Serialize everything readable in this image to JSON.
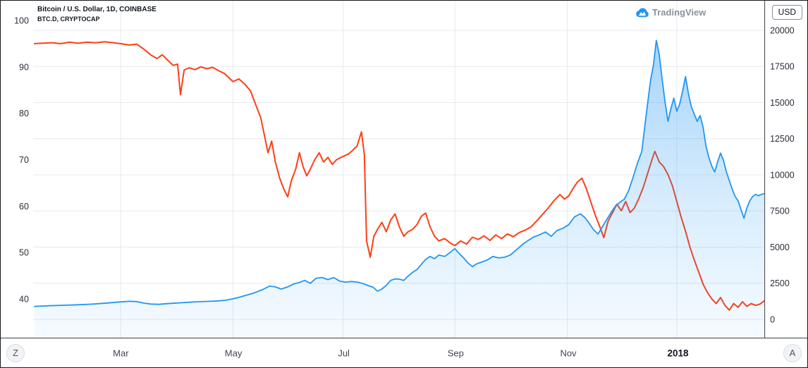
{
  "legend": {
    "symbol_title": "Bitcoin / U.S. Dollar, 1D, COINBASE",
    "overlay_title": "BTC.D, CRYPTOCAP"
  },
  "watermark": {
    "text": "TradingView"
  },
  "axes": {
    "currency_label": "USD"
  },
  "buttons": {
    "timezone_label": "Z",
    "auto_label": "A"
  },
  "colors": {
    "price_line": "#2196f3",
    "price_fill_top": "rgba(33,150,243,0.42)",
    "price_fill_mid": "rgba(33,150,243,0.18)",
    "price_fill_bottom": "rgba(33,150,243,0.04)",
    "dominance_line": "#ff3e14",
    "grid": "#e6e9f0",
    "axis_text": "#2a2e39",
    "separator": "#3d4046",
    "logo_blue": "#2196f3"
  },
  "chart_data": {
    "type": "line",
    "title": "Bitcoin / U.S. Dollar, 1D, COINBASE",
    "overlay": "BTC.D, CRYPTOCAP",
    "legend_position": "top-left",
    "grid": true,
    "x_axis": {
      "ticks": [
        {
          "label": "Mar",
          "t": 0.118,
          "strong": false
        },
        {
          "label": "May",
          "t": 0.272,
          "strong": false
        },
        {
          "label": "Jul",
          "t": 0.423,
          "strong": false
        },
        {
          "label": "Sep",
          "t": 0.576,
          "strong": false
        },
        {
          "label": "Nov",
          "t": 0.73,
          "strong": false
        },
        {
          "label": "2018",
          "t": 0.88,
          "strong": true
        }
      ]
    },
    "left_axis": {
      "title": "BTC.D (%)",
      "min": 31.65,
      "max": 104.25,
      "ticks": [
        100,
        90,
        80,
        70,
        60,
        50,
        40
      ]
    },
    "right_axis": {
      "title": "USD",
      "min": -1268,
      "max": 22048,
      "ticks": [
        20000,
        17500,
        15000,
        12500,
        10000,
        7500,
        5000,
        2500,
        0
      ]
    },
    "series": [
      {
        "name": "BTC.D, CRYPTOCAP",
        "name_slug": "dominance-line-series",
        "axis": "left",
        "style": "line",
        "color": "#ff3e14",
        "width": 2,
        "points": [
          [
            0.0,
            95.0
          ],
          [
            0.012,
            95.1
          ],
          [
            0.024,
            95.2
          ],
          [
            0.036,
            95.0
          ],
          [
            0.048,
            95.3
          ],
          [
            0.06,
            95.1
          ],
          [
            0.072,
            95.3
          ],
          [
            0.084,
            95.2
          ],
          [
            0.096,
            95.4
          ],
          [
            0.108,
            95.2
          ],
          [
            0.118,
            95.0
          ],
          [
            0.13,
            94.7
          ],
          [
            0.14,
            94.9
          ],
          [
            0.15,
            93.8
          ],
          [
            0.16,
            92.5
          ],
          [
            0.168,
            91.8
          ],
          [
            0.175,
            92.6
          ],
          [
            0.182,
            91.5
          ],
          [
            0.19,
            90.3
          ],
          [
            0.196,
            90.6
          ],
          [
            0.2,
            84.0
          ],
          [
            0.205,
            89.3
          ],
          [
            0.212,
            89.8
          ],
          [
            0.22,
            89.4
          ],
          [
            0.228,
            90.0
          ],
          [
            0.236,
            89.6
          ],
          [
            0.244,
            89.9
          ],
          [
            0.252,
            89.2
          ],
          [
            0.26,
            88.6
          ],
          [
            0.272,
            86.8
          ],
          [
            0.28,
            87.4
          ],
          [
            0.288,
            86.3
          ],
          [
            0.296,
            84.8
          ],
          [
            0.304,
            81.5
          ],
          [
            0.31,
            79.0
          ],
          [
            0.316,
            74.5
          ],
          [
            0.32,
            71.5
          ],
          [
            0.325,
            74.0
          ],
          [
            0.33,
            69.5
          ],
          [
            0.336,
            66.0
          ],
          [
            0.342,
            63.5
          ],
          [
            0.347,
            62.0
          ],
          [
            0.352,
            65.5
          ],
          [
            0.358,
            68.0
          ],
          [
            0.363,
            71.5
          ],
          [
            0.368,
            68.5
          ],
          [
            0.373,
            66.5
          ],
          [
            0.378,
            68.0
          ],
          [
            0.384,
            70.0
          ],
          [
            0.39,
            71.5
          ],
          [
            0.396,
            69.5
          ],
          [
            0.402,
            70.5
          ],
          [
            0.408,
            69.0
          ],
          [
            0.414,
            70.0
          ],
          [
            0.42,
            70.5
          ],
          [
            0.43,
            71.2
          ],
          [
            0.436,
            72.0
          ],
          [
            0.442,
            73.0
          ],
          [
            0.448,
            76.0
          ],
          [
            0.452,
            71.0
          ],
          [
            0.455,
            52.5
          ],
          [
            0.46,
            49.0
          ],
          [
            0.465,
            53.5
          ],
          [
            0.47,
            55.0
          ],
          [
            0.476,
            56.5
          ],
          [
            0.482,
            54.5
          ],
          [
            0.488,
            57.0
          ],
          [
            0.494,
            58.3
          ],
          [
            0.5,
            55.5
          ],
          [
            0.506,
            53.5
          ],
          [
            0.512,
            54.5
          ],
          [
            0.518,
            55.0
          ],
          [
            0.524,
            56.0
          ],
          [
            0.53,
            57.8
          ],
          [
            0.536,
            58.5
          ],
          [
            0.542,
            55.5
          ],
          [
            0.548,
            53.5
          ],
          [
            0.554,
            52.5
          ],
          [
            0.562,
            53.0
          ],
          [
            0.57,
            52.0
          ],
          [
            0.576,
            51.5
          ],
          [
            0.584,
            52.5
          ],
          [
            0.592,
            51.8
          ],
          [
            0.6,
            53.3
          ],
          [
            0.608,
            52.8
          ],
          [
            0.616,
            53.6
          ],
          [
            0.624,
            52.6
          ],
          [
            0.632,
            53.8
          ],
          [
            0.64,
            53.0
          ],
          [
            0.648,
            54.0
          ],
          [
            0.656,
            53.4
          ],
          [
            0.664,
            54.3
          ],
          [
            0.672,
            54.8
          ],
          [
            0.68,
            55.5
          ],
          [
            0.688,
            56.8
          ],
          [
            0.696,
            58.2
          ],
          [
            0.704,
            59.6
          ],
          [
            0.712,
            61.2
          ],
          [
            0.72,
            62.5
          ],
          [
            0.726,
            61.5
          ],
          [
            0.732,
            62.2
          ],
          [
            0.738,
            63.8
          ],
          [
            0.744,
            65.2
          ],
          [
            0.75,
            66.0
          ],
          [
            0.756,
            63.8
          ],
          [
            0.762,
            61.0
          ],
          [
            0.768,
            58.2
          ],
          [
            0.774,
            55.8
          ],
          [
            0.78,
            53.2
          ],
          [
            0.786,
            56.8
          ],
          [
            0.792,
            58.6
          ],
          [
            0.798,
            60.4
          ],
          [
            0.804,
            59.0
          ],
          [
            0.81,
            61.0
          ],
          [
            0.816,
            58.6
          ],
          [
            0.822,
            59.6
          ],
          [
            0.828,
            61.6
          ],
          [
            0.834,
            64.0
          ],
          [
            0.84,
            67.0
          ],
          [
            0.846,
            70.0
          ],
          [
            0.85,
            71.8
          ],
          [
            0.856,
            69.5
          ],
          [
            0.862,
            68.5
          ],
          [
            0.868,
            66.8
          ],
          [
            0.874,
            64.4
          ],
          [
            0.88,
            61.0
          ],
          [
            0.886,
            57.6
          ],
          [
            0.892,
            54.6
          ],
          [
            0.898,
            51.2
          ],
          [
            0.904,
            48.4
          ],
          [
            0.91,
            45.8
          ],
          [
            0.916,
            43.2
          ],
          [
            0.922,
            41.4
          ],
          [
            0.928,
            40.0
          ],
          [
            0.934,
            39.0
          ],
          [
            0.94,
            40.3
          ],
          [
            0.946,
            38.6
          ],
          [
            0.952,
            37.6
          ],
          [
            0.958,
            39.0
          ],
          [
            0.964,
            38.2
          ],
          [
            0.97,
            39.4
          ],
          [
            0.976,
            38.4
          ],
          [
            0.982,
            39.0
          ],
          [
            0.988,
            38.6
          ],
          [
            0.994,
            38.9
          ],
          [
            1.0,
            39.6
          ]
        ]
      },
      {
        "name": "Bitcoin / U.S. Dollar",
        "name_slug": "price-line-series",
        "axis": "right",
        "style": "area",
        "color": "#2196f3",
        "width": 1.8,
        "points": [
          [
            0.0,
            900
          ],
          [
            0.02,
            940
          ],
          [
            0.04,
            975
          ],
          [
            0.06,
            1010
          ],
          [
            0.08,
            1060
          ],
          [
            0.1,
            1130
          ],
          [
            0.118,
            1210
          ],
          [
            0.13,
            1250
          ],
          [
            0.14,
            1230
          ],
          [
            0.15,
            1120
          ],
          [
            0.16,
            1060
          ],
          [
            0.17,
            1040
          ],
          [
            0.182,
            1090
          ],
          [
            0.195,
            1130
          ],
          [
            0.21,
            1180
          ],
          [
            0.225,
            1220
          ],
          [
            0.24,
            1250
          ],
          [
            0.252,
            1280
          ],
          [
            0.262,
            1320
          ],
          [
            0.272,
            1420
          ],
          [
            0.282,
            1550
          ],
          [
            0.292,
            1700
          ],
          [
            0.302,
            1850
          ],
          [
            0.312,
            2050
          ],
          [
            0.322,
            2300
          ],
          [
            0.33,
            2250
          ],
          [
            0.338,
            2100
          ],
          [
            0.347,
            2250
          ],
          [
            0.355,
            2450
          ],
          [
            0.363,
            2550
          ],
          [
            0.37,
            2700
          ],
          [
            0.378,
            2500
          ],
          [
            0.386,
            2850
          ],
          [
            0.394,
            2900
          ],
          [
            0.402,
            2750
          ],
          [
            0.41,
            2900
          ],
          [
            0.418,
            2650
          ],
          [
            0.426,
            2580
          ],
          [
            0.434,
            2620
          ],
          [
            0.442,
            2580
          ],
          [
            0.45,
            2480
          ],
          [
            0.458,
            2320
          ],
          [
            0.464,
            2220
          ],
          [
            0.47,
            1950
          ],
          [
            0.476,
            2100
          ],
          [
            0.482,
            2350
          ],
          [
            0.488,
            2700
          ],
          [
            0.494,
            2800
          ],
          [
            0.5,
            2780
          ],
          [
            0.506,
            2700
          ],
          [
            0.512,
            3000
          ],
          [
            0.518,
            3250
          ],
          [
            0.524,
            3450
          ],
          [
            0.53,
            3800
          ],
          [
            0.536,
            4150
          ],
          [
            0.542,
            4350
          ],
          [
            0.548,
            4200
          ],
          [
            0.554,
            4450
          ],
          [
            0.562,
            4350
          ],
          [
            0.57,
            4650
          ],
          [
            0.576,
            4900
          ],
          [
            0.582,
            4550
          ],
          [
            0.588,
            4250
          ],
          [
            0.594,
            3900
          ],
          [
            0.6,
            3650
          ],
          [
            0.606,
            3850
          ],
          [
            0.612,
            3950
          ],
          [
            0.62,
            4100
          ],
          [
            0.628,
            4350
          ],
          [
            0.636,
            4250
          ],
          [
            0.644,
            4300
          ],
          [
            0.652,
            4450
          ],
          [
            0.66,
            4800
          ],
          [
            0.668,
            5150
          ],
          [
            0.676,
            5450
          ],
          [
            0.684,
            5700
          ],
          [
            0.692,
            5850
          ],
          [
            0.7,
            6050
          ],
          [
            0.708,
            5750
          ],
          [
            0.716,
            6150
          ],
          [
            0.724,
            6300
          ],
          [
            0.732,
            6550
          ],
          [
            0.74,
            7100
          ],
          [
            0.748,
            7300
          ],
          [
            0.754,
            7050
          ],
          [
            0.76,
            6650
          ],
          [
            0.766,
            6200
          ],
          [
            0.772,
            5900
          ],
          [
            0.778,
            6400
          ],
          [
            0.784,
            6900
          ],
          [
            0.79,
            7400
          ],
          [
            0.796,
            7850
          ],
          [
            0.802,
            8100
          ],
          [
            0.808,
            8300
          ],
          [
            0.814,
            8900
          ],
          [
            0.82,
            9800
          ],
          [
            0.826,
            10800
          ],
          [
            0.832,
            11600
          ],
          [
            0.838,
            14100
          ],
          [
            0.844,
            16500
          ],
          [
            0.848,
            17600
          ],
          [
            0.852,
            19300
          ],
          [
            0.856,
            18300
          ],
          [
            0.86,
            16600
          ],
          [
            0.864,
            15000
          ],
          [
            0.868,
            13700
          ],
          [
            0.872,
            14600
          ],
          [
            0.876,
            15300
          ],
          [
            0.88,
            14400
          ],
          [
            0.884,
            14900
          ],
          [
            0.888,
            15800
          ],
          [
            0.892,
            16800
          ],
          [
            0.896,
            15600
          ],
          [
            0.9,
            14700
          ],
          [
            0.904,
            14200
          ],
          [
            0.908,
            13700
          ],
          [
            0.912,
            14100
          ],
          [
            0.916,
            13300
          ],
          [
            0.92,
            12000
          ],
          [
            0.924,
            11200
          ],
          [
            0.928,
            10600
          ],
          [
            0.932,
            10200
          ],
          [
            0.936,
            10900
          ],
          [
            0.94,
            11500
          ],
          [
            0.944,
            11000
          ],
          [
            0.948,
            10200
          ],
          [
            0.952,
            9600
          ],
          [
            0.956,
            9000
          ],
          [
            0.96,
            8500
          ],
          [
            0.964,
            8200
          ],
          [
            0.968,
            7600
          ],
          [
            0.972,
            7000
          ],
          [
            0.976,
            7700
          ],
          [
            0.98,
            8200
          ],
          [
            0.984,
            8500
          ],
          [
            0.988,
            8650
          ],
          [
            0.992,
            8550
          ],
          [
            0.996,
            8650
          ],
          [
            1.0,
            8700
          ]
        ]
      }
    ]
  }
}
